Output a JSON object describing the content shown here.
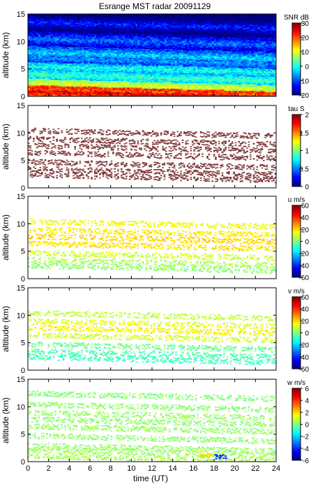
{
  "title": "Esrange MST radar 20091129",
  "xlabel": "time (UT)",
  "chart_data": [
    {
      "type": "heatmap",
      "ylabel": "altitude (km)",
      "x_ticks": [
        0,
        2,
        4,
        6,
        8,
        10,
        12,
        14,
        16,
        18,
        20,
        22,
        24
      ],
      "y_ticks": [
        0,
        5,
        10,
        15
      ],
      "xlim": [
        0,
        24
      ],
      "ylim": [
        0,
        15
      ],
      "colorbar": {
        "label": "SNR dB",
        "range": [
          -20,
          30
        ],
        "ticks": [
          30,
          20,
          10,
          0,
          -10,
          -20
        ]
      },
      "coverage": "full",
      "layers": [
        {
          "altitude_km": 0.9,
          "value": 25
        },
        {
          "altitude_km": 1.7,
          "value": 22
        },
        {
          "altitude_km": 2.4,
          "value": 10
        },
        {
          "altitude_km": 4.0,
          "value": 2
        },
        {
          "altitude_km": 5.5,
          "value": 0
        },
        {
          "altitude_km": 7.0,
          "value": -6
        },
        {
          "altitude_km": 8.0,
          "value": -3
        },
        {
          "altitude_km": 10.5,
          "value": -8
        },
        {
          "altitude_km": 13.5,
          "value": -12
        }
      ]
    },
    {
      "type": "heatmap",
      "ylabel": "altitude (km)",
      "x_ticks": [
        0,
        2,
        4,
        6,
        8,
        10,
        12,
        14,
        16,
        18,
        20,
        22,
        24
      ],
      "y_ticks": [
        0,
        5,
        10,
        15
      ],
      "xlim": [
        0,
        24
      ],
      "ylim": [
        0,
        15
      ],
      "colorbar": {
        "label": "tau S",
        "range": [
          0,
          2
        ],
        "ticks": [
          2,
          1.5,
          1,
          0.5,
          0
        ]
      },
      "coverage": "sparse",
      "layers": [
        {
          "altitude_km": 2.5,
          "value": 0.6
        },
        {
          "altitude_km": 3.5,
          "value": 0.6
        },
        {
          "altitude_km": 4.8,
          "value": 0.6
        },
        {
          "altitude_km": 6.5,
          "value": 0.6
        },
        {
          "altitude_km": 7.8,
          "value": 0.6
        },
        {
          "altitude_km": 9.0,
          "value": 0.6
        },
        {
          "altitude_km": 10.5,
          "value": 0.6
        }
      ]
    },
    {
      "type": "heatmap",
      "ylabel": "altitude (km)",
      "x_ticks": [
        0,
        2,
        4,
        6,
        8,
        10,
        12,
        14,
        16,
        18,
        20,
        22,
        24
      ],
      "y_ticks": [
        0,
        5,
        10,
        15
      ],
      "xlim": [
        0,
        24
      ],
      "ylim": [
        0,
        15
      ],
      "colorbar": {
        "label": "u m/s",
        "range": [
          -60,
          60
        ],
        "ticks": [
          60,
          40,
          20,
          0,
          -20,
          -40,
          -60
        ]
      },
      "coverage": "sparse",
      "layers": [
        {
          "altitude_km": 2.5,
          "value": 2
        },
        {
          "altitude_km": 3.5,
          "value": 5
        },
        {
          "altitude_km": 4.8,
          "value": 10
        },
        {
          "altitude_km": 6.5,
          "value": 18
        },
        {
          "altitude_km": 7.8,
          "value": 20
        },
        {
          "altitude_km": 9.0,
          "value": 17
        },
        {
          "altitude_km": 10.5,
          "value": 14
        }
      ]
    },
    {
      "type": "heatmap",
      "ylabel": "altitude (km)",
      "x_ticks": [
        0,
        2,
        4,
        6,
        8,
        10,
        12,
        14,
        16,
        18,
        20,
        22,
        24
      ],
      "y_ticks": [
        0,
        5,
        10,
        15
      ],
      "xlim": [
        0,
        24
      ],
      "ylim": [
        0,
        15
      ],
      "colorbar": {
        "label": "v m/s",
        "range": [
          -60,
          60
        ],
        "ticks": [
          60,
          40,
          20,
          0,
          -20,
          -40,
          -60
        ]
      },
      "coverage": "sparse",
      "layers": [
        {
          "altitude_km": 2.5,
          "value": -8
        },
        {
          "altitude_km": 3.5,
          "value": -6
        },
        {
          "altitude_km": 4.8,
          "value": -2
        },
        {
          "altitude_km": 6.5,
          "value": 10
        },
        {
          "altitude_km": 7.8,
          "value": 16
        },
        {
          "altitude_km": 9.0,
          "value": 12
        },
        {
          "altitude_km": 10.5,
          "value": 8
        }
      ]
    },
    {
      "type": "heatmap",
      "ylabel": "altitude (km)",
      "x_ticks": [
        0,
        2,
        4,
        6,
        8,
        10,
        12,
        14,
        16,
        18,
        20,
        22,
        24
      ],
      "y_ticks": [
        0,
        5,
        10,
        15
      ],
      "xlim": [
        0,
        24
      ],
      "ylim": [
        0,
        15
      ],
      "colorbar": {
        "label": "w m/s",
        "range": [
          -6,
          6
        ],
        "ticks": [
          6,
          4,
          2,
          0,
          -2,
          -4,
          -6
        ]
      },
      "coverage": "sparse",
      "layers": [
        {
          "altitude_km": 1.2,
          "value": 0.5
        },
        {
          "altitude_km": 2.2,
          "value": 0.4
        },
        {
          "altitude_km": 3.0,
          "value": 0.3
        },
        {
          "altitude_km": 4.8,
          "value": 0.2
        },
        {
          "altitude_km": 6.5,
          "value": 0.3
        },
        {
          "altitude_km": 7.8,
          "value": 0.2
        },
        {
          "altitude_km": 9.0,
          "value": 0.3
        },
        {
          "altitude_km": 10.5,
          "value": 0.2
        },
        {
          "altitude_km": 12.5,
          "value": 0.1
        }
      ],
      "features": [
        {
          "time_ut": 18.5,
          "altitude_km": 1.0,
          "value": -4
        },
        {
          "time_ut": 17.2,
          "altitude_km": 1.2,
          "value": 2
        }
      ]
    }
  ]
}
